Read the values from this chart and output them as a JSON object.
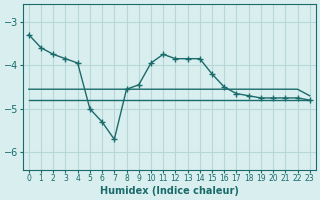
{
  "xlabel": "Humidex (Indice chaleur)",
  "background_color": "#d9eeee",
  "grid_color": "#b8d8d8",
  "line_color": "#1a6b6b",
  "x": [
    0,
    1,
    2,
    3,
    4,
    5,
    6,
    7,
    8,
    9,
    10,
    11,
    12,
    13,
    14,
    15,
    16,
    17,
    18,
    19,
    20,
    21,
    22,
    23
  ],
  "line1": [
    -3.3,
    -3.6,
    -3.75,
    -3.85,
    -3.95,
    -5.0,
    -5.3,
    -5.7,
    -4.55,
    -4.45,
    -3.95,
    -3.75,
    -3.85,
    -3.85,
    -3.85,
    -4.2,
    -4.5,
    -4.65,
    -4.7,
    -4.75,
    -4.75,
    -4.75,
    -4.75,
    -4.8
  ],
  "line2": [
    -4.55,
    -4.55,
    -4.55,
    -4.55,
    -4.55,
    -4.55,
    -4.55,
    -4.55,
    -4.55,
    -4.55,
    -4.55,
    -4.55,
    -4.55,
    -4.55,
    -4.55,
    -4.55,
    -4.55,
    -4.55,
    -4.55,
    -4.55,
    -4.55,
    -4.55,
    -4.55,
    -4.7
  ],
  "line3": [
    -4.8,
    -4.8,
    -4.8,
    -4.8,
    -4.8,
    -4.8,
    -4.8,
    -4.8,
    -4.8,
    -4.8,
    -4.8,
    -4.8,
    -4.8,
    -4.8,
    -4.8,
    -4.8,
    -4.8,
    -4.8,
    -4.8,
    -4.8,
    -4.8,
    -4.8,
    -4.8,
    -4.8
  ],
  "ylim": [
    -6.4,
    -2.6
  ],
  "yticks": [
    -6,
    -5,
    -4,
    -3
  ],
  "xlim": [
    -0.5,
    23.5
  ]
}
